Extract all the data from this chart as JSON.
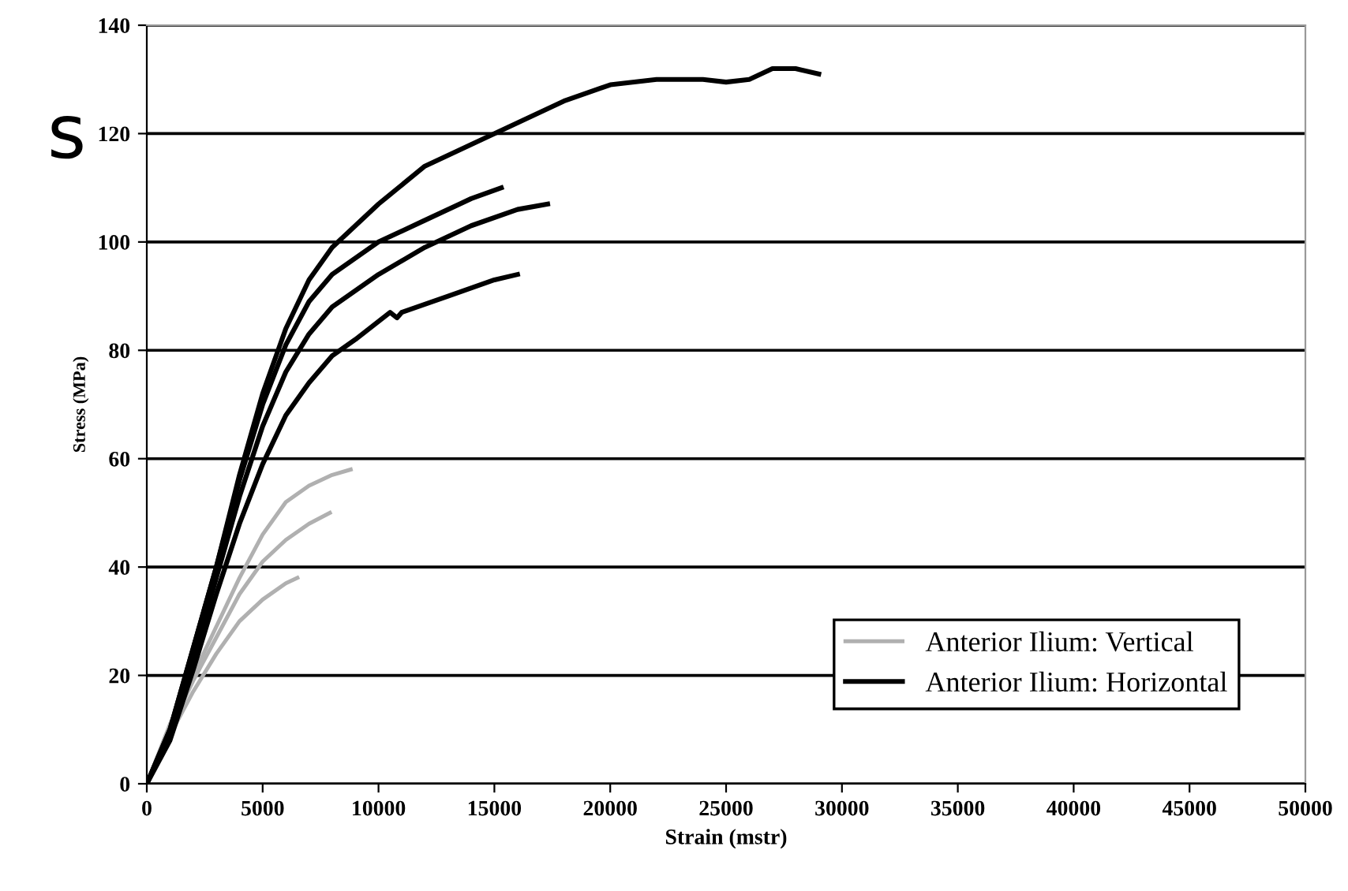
{
  "chart_data": {
    "type": "line",
    "xlabel": "Strain (mstr)",
    "ylabel": "Stress (MPa)",
    "annotations": [
      "s"
    ],
    "xlim": [
      0,
      50000
    ],
    "xticks": [
      0,
      5000,
      10000,
      15000,
      20000,
      25000,
      30000,
      35000,
      40000,
      45000,
      50000
    ],
    "ylim": [
      0,
      140
    ],
    "yticks": [
      0,
      20,
      40,
      60,
      80,
      100,
      120,
      140
    ],
    "grid": "y",
    "legend": "bottom right",
    "marker": "none",
    "line_style": "solid",
    "series": [
      {
        "name": "Anterior Ilium: Vertical",
        "color": "#b0b0b0",
        "x": [
          0,
          1000,
          2000,
          3000,
          4000,
          5000,
          6000,
          7000,
          8000,
          8800
        ],
        "values": [
          0,
          11,
          20,
          29,
          38,
          46,
          52,
          55,
          57,
          58
        ]
      },
      {
        "color": "#b0b0b0",
        "x": [
          0,
          1000,
          2000,
          3000,
          4000,
          5000,
          6000,
          7000,
          7900
        ],
        "values": [
          0,
          10,
          19,
          27,
          35,
          41,
          45,
          48,
          50
        ]
      },
      {
        "color": "#b0b0b0",
        "x": [
          0,
          1000,
          2000,
          3000,
          4000,
          5000,
          6000,
          6500
        ],
        "values": [
          0,
          9,
          17,
          24,
          30,
          34,
          37,
          38
        ]
      },
      {
        "name": "Anterior Ilium: Horizontal",
        "color": "#000000",
        "x": [
          0,
          1000,
          2000,
          3000,
          4000,
          5000,
          6000,
          7000,
          8000,
          9000,
          10000,
          12000,
          14000,
          16000,
          18000,
          20000,
          22000,
          24000,
          25000,
          26000,
          27000,
          28000,
          29000
        ],
        "values": [
          0,
          10,
          25,
          40,
          57,
          72,
          84,
          93,
          99,
          103,
          107,
          114,
          118,
          122,
          126,
          129,
          130,
          130,
          129.5,
          130,
          132,
          132,
          131
        ]
      },
      {
        "color": "#000000",
        "x": [
          0,
          1000,
          2000,
          3000,
          4000,
          5000,
          6000,
          7000,
          8000,
          10000,
          12000,
          14000,
          15300
        ],
        "values": [
          0,
          10,
          25,
          40,
          56,
          70,
          81,
          89,
          94,
          100,
          104,
          108,
          110
        ]
      },
      {
        "color": "#000000",
        "x": [
          0,
          1000,
          2000,
          3000,
          4000,
          5000,
          6000,
          7000,
          8000,
          10000,
          12000,
          14000,
          16000,
          17300
        ],
        "values": [
          0,
          9,
          23,
          38,
          53,
          66,
          76,
          83,
          88,
          94,
          99,
          103,
          106,
          107
        ]
      },
      {
        "color": "#000000",
        "x": [
          0,
          1000,
          2000,
          3000,
          4000,
          5000,
          6000,
          7000,
          8000,
          9000,
          10500,
          10800,
          11000,
          13000,
          15000,
          16000
        ],
        "values": [
          0,
          8,
          21,
          35,
          48,
          59,
          68,
          74,
          79,
          82,
          87,
          86,
          87,
          90,
          93,
          94
        ]
      }
    ]
  }
}
